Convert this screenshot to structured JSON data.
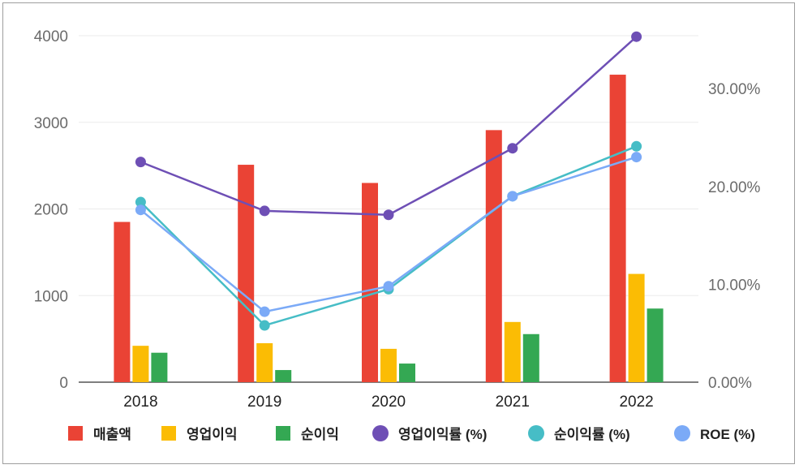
{
  "chart_data": {
    "type": "bar",
    "categories": [
      "2018",
      "2019",
      "2020",
      "2021",
      "2022"
    ],
    "bar_series": [
      {
        "name": "매출액",
        "color": "#ea4335",
        "values": [
          1850,
          2510,
          2300,
          2910,
          3550
        ]
      },
      {
        "name": "영업이익",
        "color": "#fbbc04",
        "values": [
          420,
          450,
          385,
          695,
          1250
        ]
      },
      {
        "name": "순이익",
        "color": "#34a853",
        "values": [
          340,
          140,
          215,
          555,
          850
        ]
      }
    ],
    "line_series": [
      {
        "name": "영업이익률 (%)",
        "color": "#6e4fb5",
        "values": [
          22.5,
          17.5,
          17.1,
          23.9,
          35.3
        ]
      },
      {
        "name": "순이익률 (%)",
        "color": "#46bdc6",
        "values": [
          18.4,
          5.8,
          9.5,
          19.0,
          24.1
        ]
      },
      {
        "name": "ROE (%)",
        "color": "#7baaf7",
        "values": [
          17.6,
          7.2,
          9.8,
          19.0,
          23.0
        ]
      }
    ],
    "y_left": {
      "min": 0,
      "max": 4000,
      "ticks": [
        "0",
        "1000",
        "2000",
        "3000",
        "4000"
      ]
    },
    "y_right": {
      "min": 0,
      "max": 35.4,
      "ticks": [
        "0.00%",
        "10.00%",
        "20.00%",
        "30.00%"
      ],
      "tick_values": [
        0,
        10,
        20,
        30
      ]
    },
    "grid": true,
    "legend_position": "bottom"
  }
}
